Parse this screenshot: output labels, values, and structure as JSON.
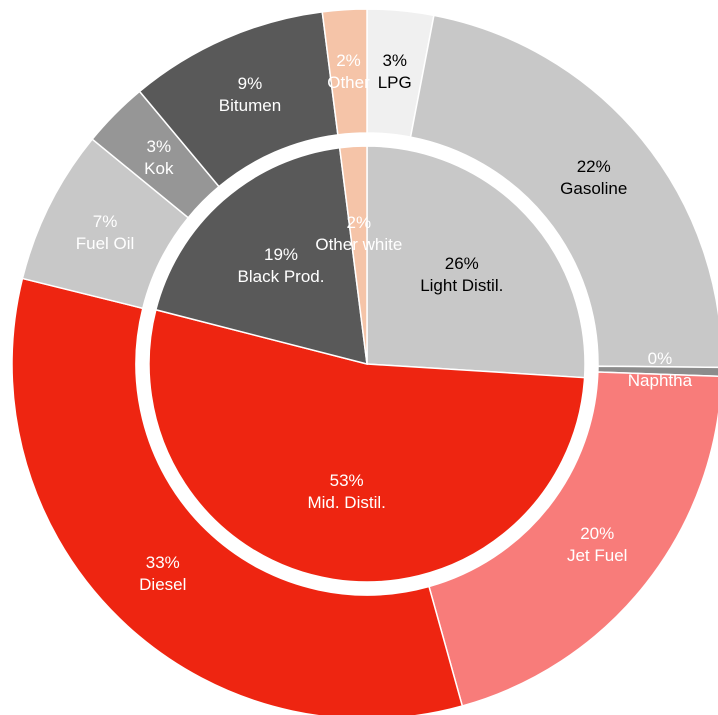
{
  "chart_data": {
    "type": "sunburst",
    "inner": {
      "categories": [
        "Light Distil.",
        "Mid. Distil.",
        "Black Prod.",
        "Other white"
      ],
      "values": [
        26,
        53,
        19,
        2
      ],
      "value_labels": [
        "26%",
        "53%",
        "19%",
        "2%"
      ],
      "colors": [
        "#c8c8c8",
        "#ee2511",
        "#595959",
        "#f5c4a8"
      ],
      "text_colors": [
        "#000000",
        "#ffffff",
        "#ffffff",
        "#ffffff"
      ]
    },
    "outer": {
      "categories": [
        "LPG",
        "Gasoline",
        "Naphtha",
        "Jet Fuel",
        "Diesel",
        "Fuel Oil",
        "Kok",
        "Bitumen",
        "Other"
      ],
      "values": [
        3,
        22,
        0.4,
        20,
        33,
        7,
        3,
        9,
        2
      ],
      "value_labels": [
        "3%",
        "22%",
        "0%",
        "20%",
        "33%",
        "7%",
        "3%",
        "9%",
        "2%"
      ],
      "colors": [
        "#f0f0f0",
        "#c8c8c8",
        "#8c8c8c",
        "#f87c7a",
        "#ee2511",
        "#c8c8c8",
        "#969696",
        "#595959",
        "#f5c4a8"
      ],
      "text_colors": [
        "#000000",
        "#000000",
        "#ffffff",
        "#ffffff",
        "#ffffff",
        "#ffffff",
        "#ffffff",
        "#ffffff",
        "#ffffff"
      ]
    }
  }
}
